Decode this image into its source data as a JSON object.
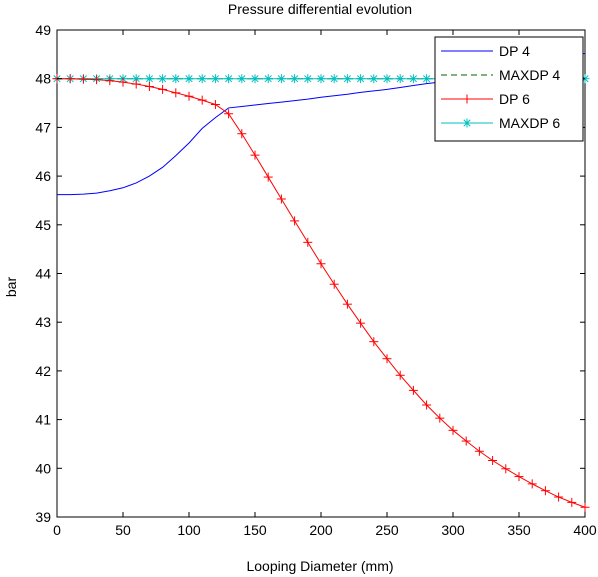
{
  "chart_data": {
    "type": "line",
    "title": "Pressure differential evolution",
    "xlabel": "Looping Diameter (mm)",
    "ylabel": "bar",
    "xlim": [
      0,
      400
    ],
    "ylim": [
      39,
      49
    ],
    "xticks": [
      0,
      50,
      100,
      150,
      200,
      250,
      300,
      350,
      400
    ],
    "yticks": [
      39,
      40,
      41,
      42,
      43,
      44,
      45,
      46,
      47,
      48,
      49
    ],
    "grid": false,
    "legend_position": "top-right",
    "series": [
      {
        "name": "DP 4",
        "color": "#0000ff",
        "line_style": "solid",
        "marker": "none",
        "x": [
          0,
          10,
          20,
          30,
          40,
          50,
          60,
          70,
          80,
          90,
          100,
          110,
          120,
          130,
          140,
          150,
          160,
          170,
          180,
          190,
          200,
          210,
          220,
          230,
          240,
          250,
          260,
          270,
          280,
          290,
          300,
          310,
          320,
          330,
          340,
          350,
          360,
          370,
          380,
          390,
          400
        ],
        "y": [
          45.62,
          45.62,
          45.63,
          45.65,
          45.7,
          45.76,
          45.86,
          46.0,
          46.18,
          46.42,
          46.68,
          46.98,
          47.2,
          47.4,
          47.43,
          47.46,
          47.49,
          47.52,
          47.55,
          47.58,
          47.62,
          47.65,
          47.68,
          47.72,
          47.75,
          47.78,
          47.82,
          47.86,
          47.9,
          47.93,
          47.97,
          48.02,
          48.06,
          48.11,
          48.16,
          48.22,
          48.28,
          48.34,
          48.4,
          48.46,
          48.52
        ]
      },
      {
        "name": "MAXDP 4",
        "color": "#006400",
        "line_style": "dashed",
        "marker": "none",
        "x": [
          0,
          400
        ],
        "y": [
          48.0,
          48.0
        ]
      },
      {
        "name": "DP 6",
        "color": "#ff0000",
        "line_style": "solid",
        "marker": "plus",
        "x": [
          0,
          10,
          20,
          30,
          40,
          50,
          60,
          70,
          80,
          90,
          100,
          110,
          120,
          130,
          140,
          150,
          160,
          170,
          180,
          190,
          200,
          210,
          220,
          230,
          240,
          250,
          260,
          270,
          280,
          290,
          300,
          310,
          320,
          330,
          340,
          350,
          360,
          370,
          380,
          390,
          400
        ],
        "y": [
          48.0,
          48.0,
          47.99,
          47.98,
          47.96,
          47.93,
          47.89,
          47.84,
          47.78,
          47.71,
          47.64,
          47.56,
          47.47,
          47.28,
          46.87,
          46.43,
          45.98,
          45.53,
          45.08,
          44.64,
          44.2,
          43.78,
          43.37,
          42.98,
          42.6,
          42.25,
          41.91,
          41.6,
          41.3,
          41.03,
          40.78,
          40.56,
          40.35,
          40.16,
          39.99,
          39.83,
          39.68,
          39.54,
          39.41,
          39.3,
          39.2
        ]
      },
      {
        "name": "MAXDP 6",
        "color": "#00bfbf",
        "line_style": "solid",
        "marker": "star",
        "x": [
          0,
          10,
          20,
          30,
          40,
          50,
          60,
          70,
          80,
          90,
          100,
          110,
          120,
          130,
          140,
          150,
          160,
          170,
          180,
          190,
          200,
          210,
          220,
          230,
          240,
          250,
          260,
          270,
          280,
          290,
          300,
          310,
          320,
          330,
          340,
          350,
          360,
          370,
          380,
          390,
          400
        ],
        "y": [
          48,
          48,
          48,
          48,
          48,
          48,
          48,
          48,
          48,
          48,
          48,
          48,
          48,
          48,
          48,
          48,
          48,
          48,
          48,
          48,
          48,
          48,
          48,
          48,
          48,
          48,
          48,
          48,
          48,
          48,
          48,
          48,
          48,
          48,
          48,
          48,
          48,
          48,
          48,
          48,
          48
        ]
      }
    ]
  }
}
